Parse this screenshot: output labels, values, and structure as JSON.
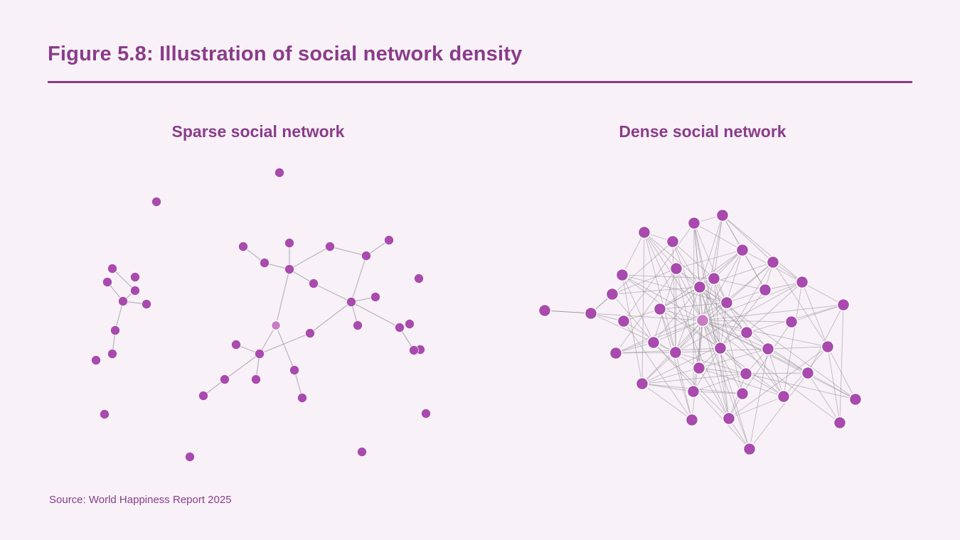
{
  "title": "Figure 5.8: Illustration of social network density",
  "panels": [
    {
      "label": "Sparse social network",
      "nodes": 39,
      "edges": [
        [
          "a",
          "d"
        ],
        [
          "b",
          "e"
        ],
        [
          "d",
          "e"
        ],
        [
          "e",
          "f"
        ],
        [
          "e",
          "g"
        ],
        [
          "g",
          "h"
        ],
        [
          "n1",
          "n5"
        ],
        [
          "n5",
          "n6"
        ],
        [
          "n2",
          "n6"
        ],
        [
          "n6",
          "n3"
        ],
        [
          "n3",
          "n7"
        ],
        [
          "n7",
          "n4"
        ],
        [
          "n7",
          "n9"
        ],
        [
          "n6",
          "n8"
        ],
        [
          "n8",
          "n9"
        ],
        [
          "n9",
          "n10"
        ],
        [
          "n9",
          "n11"
        ],
        [
          "n9",
          "n12"
        ],
        [
          "n12",
          "n14"
        ],
        [
          "n9",
          "n17"
        ],
        [
          "n17",
          "n19"
        ],
        [
          "c",
          "n6"
        ],
        [
          "c",
          "n19"
        ],
        [
          "c",
          "n22"
        ],
        [
          "n22",
          "n24"
        ],
        [
          "n18",
          "n19"
        ],
        [
          "n19",
          "n20"
        ],
        [
          "n20",
          "n23"
        ],
        [
          "n19",
          "n21"
        ]
      ]
    },
    {
      "label": "Dense social network",
      "nodes": 40
    }
  ],
  "colors": {
    "node": "#a94aae",
    "focal_node": "#c77cc4",
    "edge": "#b8b4b8",
    "accent": "#8a3c8a"
  },
  "source": "Source: World Happiness Report 2025"
}
